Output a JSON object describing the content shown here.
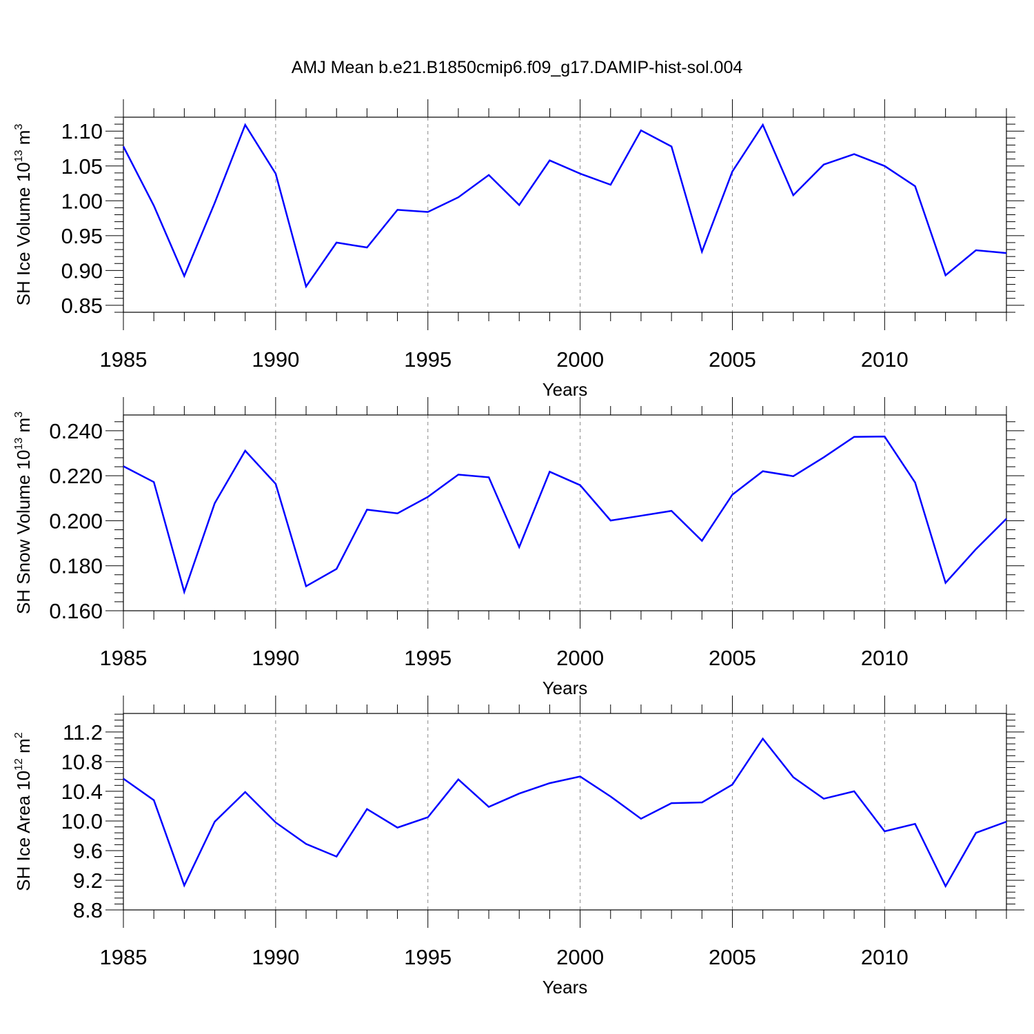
{
  "title": "AMJ Mean b.e21.B1850cmip6.f09_g17.DAMIP-hist-sol.004",
  "chart_data": [
    {
      "type": "line",
      "xlabel": "Years",
      "ylabel": "SH Ice Volume",
      "units": {
        "scale": "10",
        "exp": "13",
        "unit": "m",
        "unit_exp": "3"
      },
      "xlim": [
        1985,
        2014
      ],
      "ylim": [
        0.84,
        1.12
      ],
      "xticks": [
        1985,
        1990,
        1995,
        2000,
        2005,
        2010
      ],
      "xtick_labels": [
        "1985",
        "1990",
        "1995",
        "2000",
        "2005",
        "2010"
      ],
      "yticks": [
        0.85,
        0.9,
        0.95,
        1.0,
        1.05,
        1.1
      ],
      "ytick_labels": [
        "0.85",
        "0.90",
        "0.95",
        "1.00",
        "1.05",
        "1.10"
      ],
      "x": [
        1985,
        1986,
        1987,
        1988,
        1989,
        1990,
        1991,
        1992,
        1993,
        1994,
        1995,
        1996,
        1997,
        1998,
        1999,
        2000,
        2001,
        2002,
        2003,
        2004,
        2005,
        2006,
        2007,
        2008,
        2009,
        2010,
        2011,
        2012,
        2013,
        2014
      ],
      "values": [
        1.078,
        0.993,
        0.892,
        0.997,
        1.109,
        1.039,
        0.877,
        0.94,
        0.933,
        0.987,
        0.984,
        1.005,
        1.037,
        0.994,
        1.058,
        1.039,
        1.023,
        1.101,
        1.078,
        0.927,
        1.042,
        1.109,
        1.008,
        1.052,
        1.067,
        1.05,
        1.021,
        0.893,
        0.929,
        0.925
      ]
    },
    {
      "type": "line",
      "xlabel": "Years",
      "ylabel": "SH Snow Volume",
      "units": {
        "scale": "10",
        "exp": "13",
        "unit": "m",
        "unit_exp": "3"
      },
      "xlim": [
        1985,
        2014
      ],
      "ylim": [
        0.16,
        0.247
      ],
      "xticks": [
        1985,
        1990,
        1995,
        2000,
        2005,
        2010
      ],
      "xtick_labels": [
        "1985",
        "1990",
        "1995",
        "2000",
        "2005",
        "2010"
      ],
      "yticks": [
        0.16,
        0.18,
        0.2,
        0.22,
        0.24
      ],
      "ytick_labels": [
        "0.160",
        "0.180",
        "0.200",
        "0.220",
        "0.240"
      ],
      "x": [
        1985,
        1986,
        1987,
        1988,
        1989,
        1990,
        1991,
        1992,
        1993,
        1994,
        1995,
        1996,
        1997,
        1998,
        1999,
        2000,
        2001,
        2002,
        2003,
        2004,
        2005,
        2006,
        2007,
        2008,
        2009,
        2010,
        2011,
        2012,
        2013,
        2014
      ],
      "values": [
        0.2242,
        0.2172,
        0.1684,
        0.2078,
        0.2311,
        0.2164,
        0.1709,
        0.1786,
        0.2049,
        0.2033,
        0.2106,
        0.2205,
        0.2193,
        0.1883,
        0.2218,
        0.2158,
        0.2001,
        0.2022,
        0.2044,
        0.1911,
        0.2116,
        0.222,
        0.2198,
        0.2282,
        0.2373,
        0.2374,
        0.217,
        0.1724,
        0.1874,
        0.2009
      ]
    },
    {
      "type": "line",
      "xlabel": "Years",
      "ylabel": "SH Ice Area",
      "units": {
        "scale": "10",
        "exp": "12",
        "unit": "m",
        "unit_exp": "2"
      },
      "xlim": [
        1985,
        2014
      ],
      "ylim": [
        8.8,
        11.45
      ],
      "xticks": [
        1985,
        1990,
        1995,
        2000,
        2005,
        2010
      ],
      "xtick_labels": [
        "1985",
        "1990",
        "1995",
        "2000",
        "2005",
        "2010"
      ],
      "yticks": [
        8.8,
        9.2,
        9.6,
        10.0,
        10.4,
        10.8,
        11.2
      ],
      "ytick_labels": [
        "8.8",
        "9.2",
        "9.6",
        "10.0",
        "10.4",
        "10.8",
        "11.2"
      ],
      "x": [
        1985,
        1986,
        1987,
        1988,
        1989,
        1990,
        1991,
        1992,
        1993,
        1994,
        1995,
        1996,
        1997,
        1998,
        1999,
        2000,
        2001,
        2002,
        2003,
        2004,
        2005,
        2006,
        2007,
        2008,
        2009,
        2010,
        2011,
        2012,
        2013,
        2014
      ],
      "values": [
        10.57,
        10.28,
        9.13,
        9.99,
        10.39,
        9.98,
        9.69,
        9.52,
        10.16,
        9.91,
        10.05,
        10.56,
        10.19,
        10.37,
        10.51,
        10.6,
        10.33,
        10.03,
        10.24,
        10.25,
        10.49,
        11.11,
        10.59,
        10.3,
        10.4,
        9.86,
        9.96,
        9.12,
        9.84,
        9.99
      ]
    }
  ]
}
